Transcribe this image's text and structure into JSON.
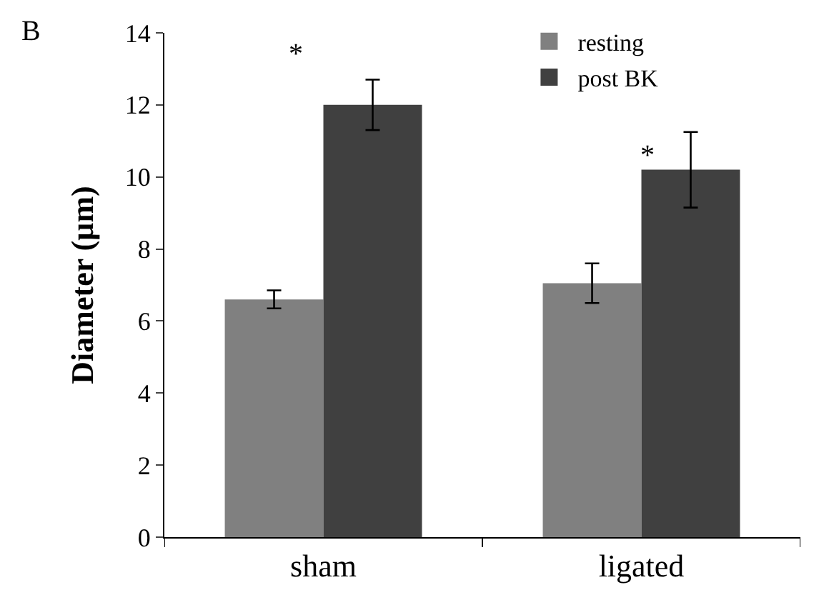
{
  "chart_data": {
    "type": "bar",
    "ylabel": "Diameter (µm)",
    "categories": [
      "sham",
      "ligated"
    ],
    "series": [
      {
        "name": "resting",
        "color": "#808080",
        "values": [
          6.6,
          7.05
        ],
        "errors": [
          0.25,
          0.55
        ]
      },
      {
        "name": "post BK",
        "color": "#404040",
        "values": [
          12.0,
          10.2
        ],
        "errors": [
          0.7,
          1.05
        ]
      }
    ],
    "ylim": [
      0,
      14
    ],
    "yticks": [
      0,
      2,
      4,
      6,
      8,
      10,
      12,
      14
    ],
    "legend": "top",
    "annotations": [
      "B",
      "*",
      "*"
    ]
  }
}
